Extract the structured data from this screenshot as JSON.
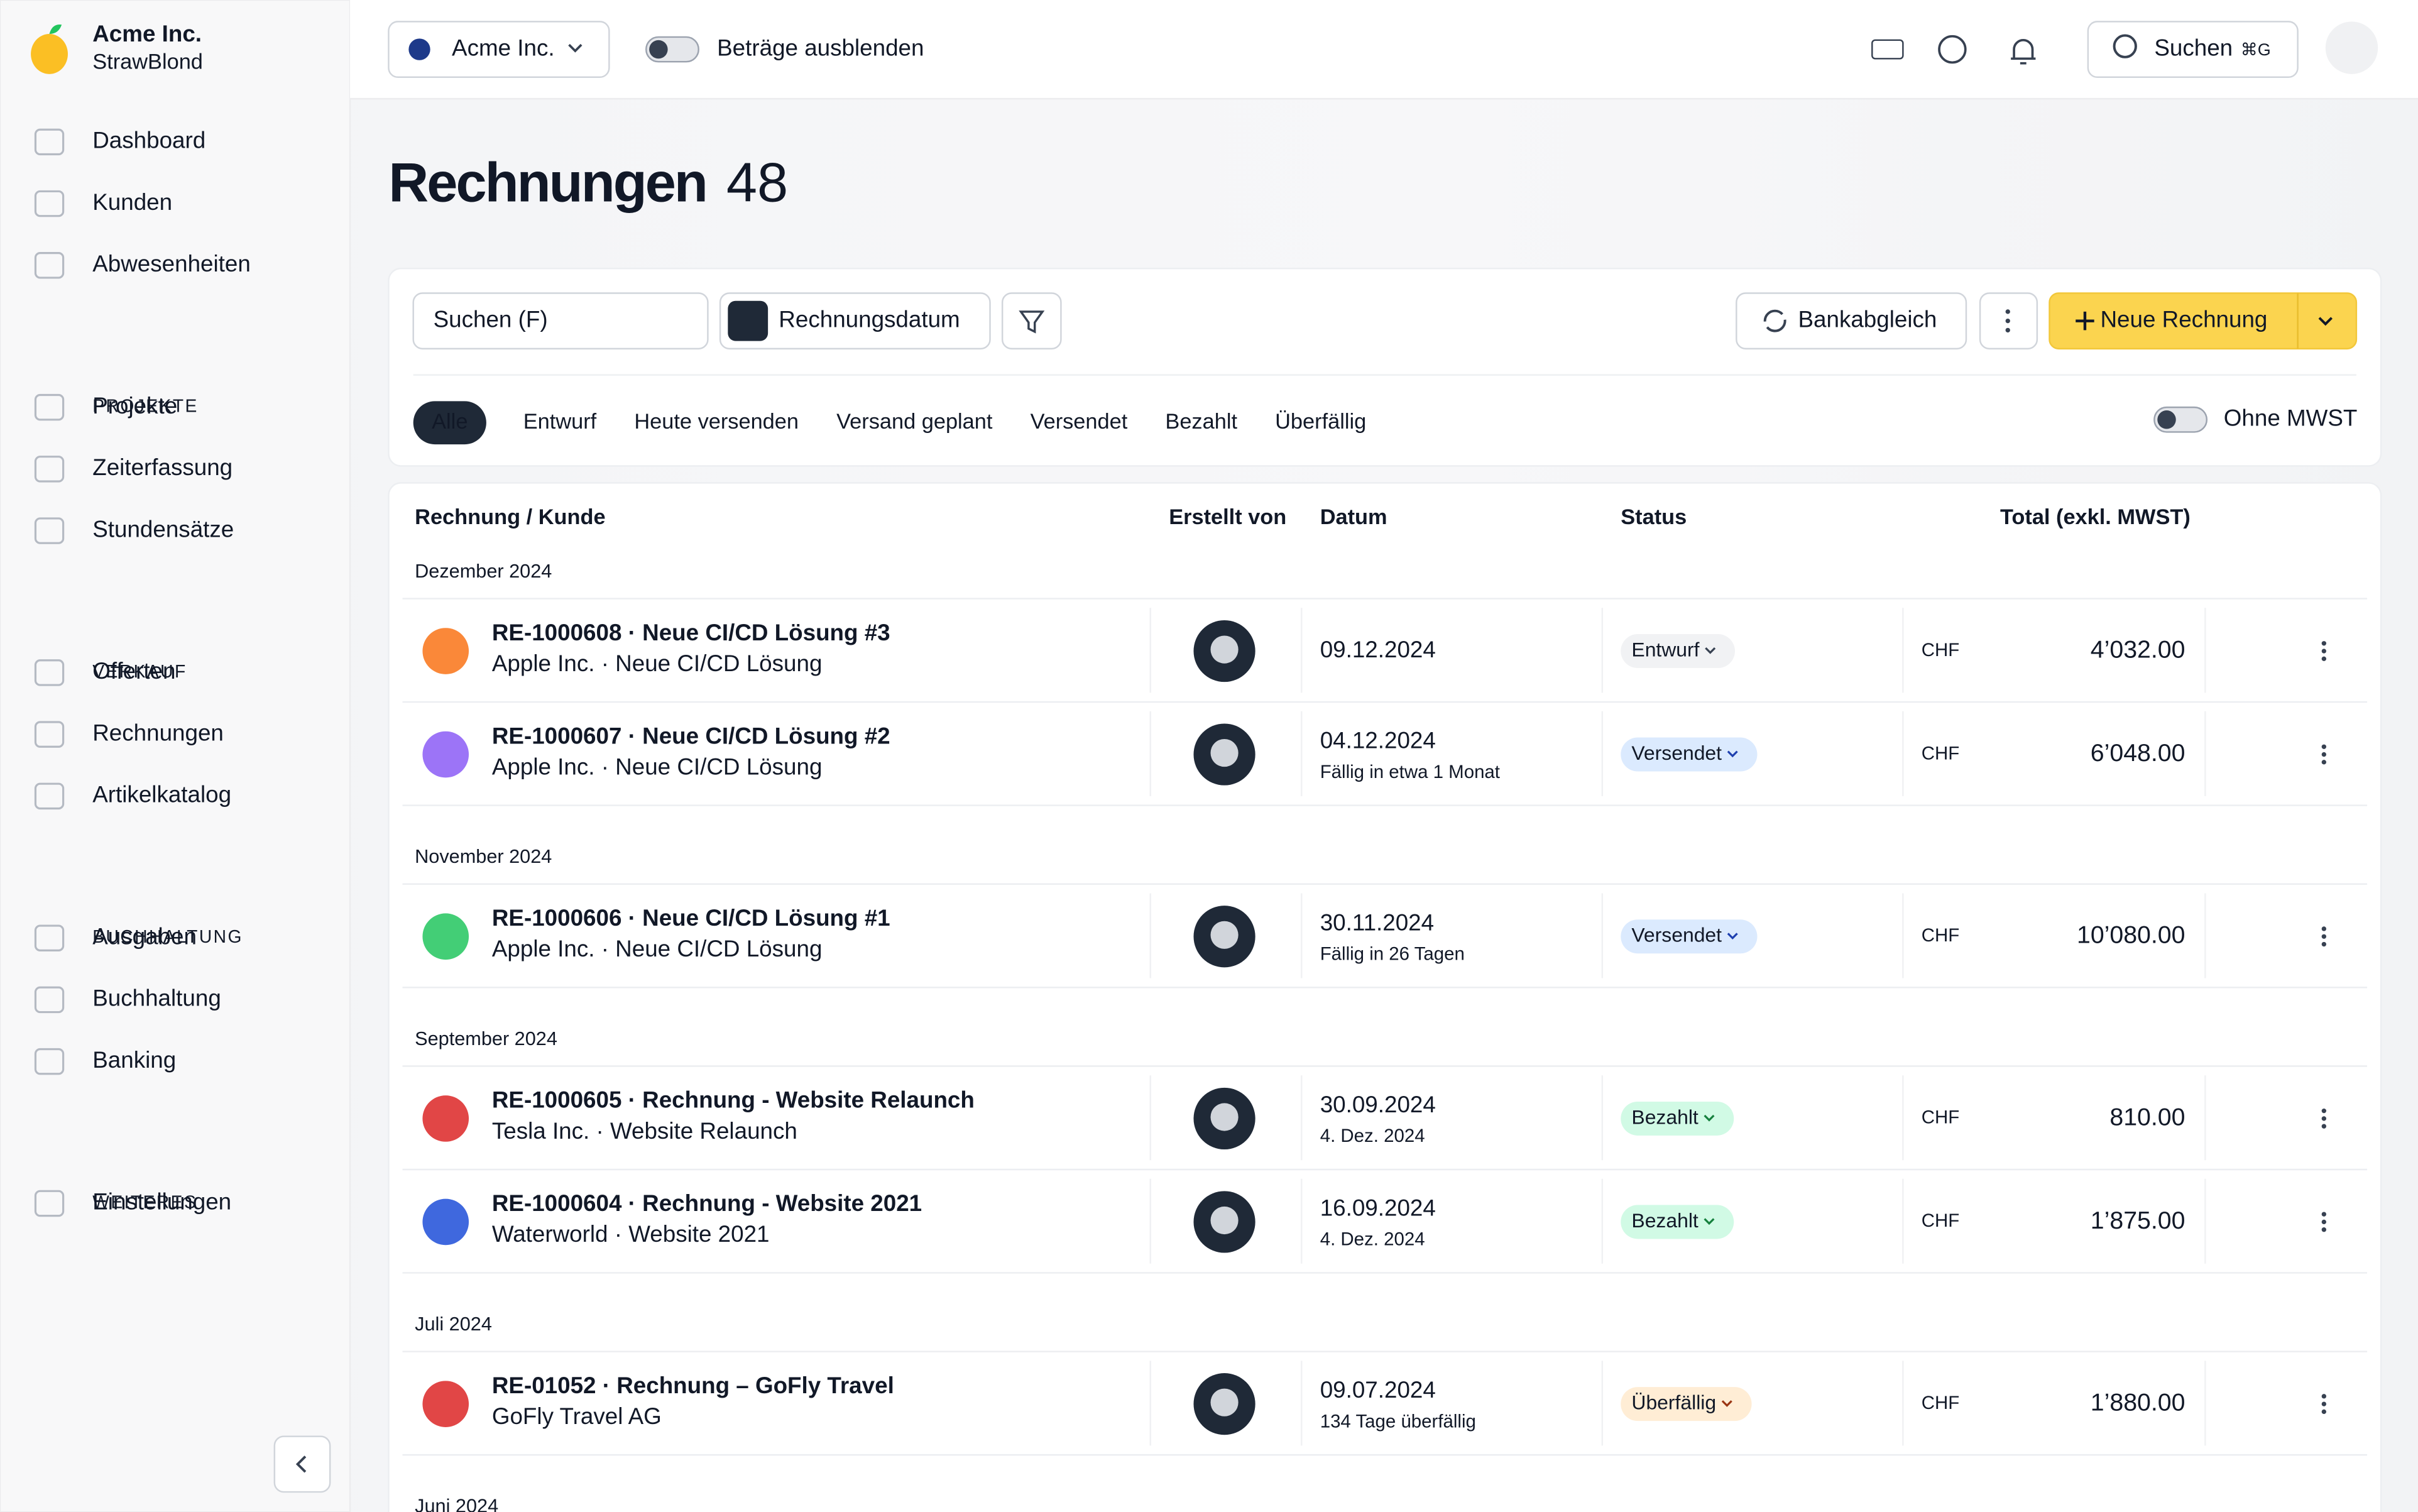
{
  "sidebar": {
    "company": "Acme Inc.",
    "subtitle": "StrawBlond",
    "nav": [
      {
        "items": [
          "Dashboard",
          "Kunden",
          "Abwesenheiten"
        ]
      },
      {
        "heading": "PROJEKTE",
        "items": [
          "Projekte",
          "Zeiterfassung",
          "Stundensätze"
        ]
      },
      {
        "heading": "VERKAUF",
        "items": [
          "Offerten",
          "Rechnungen",
          "Artikelkatalog"
        ]
      },
      {
        "heading": "BUCHHALTUNG",
        "items": [
          "Ausgaben",
          "Buchhaltung",
          "Banking"
        ]
      },
      {
        "heading": "WEITERES",
        "items": [
          "Einstellungen"
        ]
      }
    ]
  },
  "topbar": {
    "organization": "Acme Inc.",
    "hide_amounts": "Beträge ausblenden",
    "search": "Suchen",
    "search_shortcut": "⌘G"
  },
  "page": {
    "title": "Rechnungen",
    "count": 48
  },
  "toolbar": {
    "search_placeholder": "Suchen (F)",
    "sort": "Rechnungsdatum",
    "bank_reconciliation": "Bankabgleich",
    "new_invoice": "Neue Rechnung",
    "tabs": [
      "Alle",
      "Entwurf",
      "Heute versenden",
      "Versand geplant",
      "Versendet",
      "Bezahlt",
      "Überfällig"
    ],
    "active_tab": 0,
    "vat_toggle": "Ohne MWST"
  },
  "table": {
    "columns": [
      "Rechnung / Kunde",
      "Erstellt von",
      "Datum",
      "Status",
      "Total (exkl. MWST)"
    ],
    "groups": [
      {
        "label": "Dezember 2024",
        "rows": [
          {
            "title": "RE-1000608 · Neue CI/CD Lösung #3",
            "customer": "Apple Inc. · Neue CI/CD Lösung",
            "date": "09.12.2024",
            "status": "Entwurf",
            "status_color": "#374151",
            "status_bg": "#f1f2f4",
            "currency": "CHF",
            "total": "4’032.00"
          },
          {
            "title": "RE-1000607 · Neue CI/CD Lösung #2",
            "customer": "Apple Inc. · Neue CI/CD Lösung",
            "date": "04.12.2024",
            "note": "Fällig in etwa 1 Monat",
            "note_color": "#6b7280",
            "status": "Versendet",
            "status_color": "#1e40af",
            "status_bg": "#dbeafe",
            "currency": "CHF",
            "total": "6’048.00"
          }
        ]
      },
      {
        "label": "November 2024",
        "rows": [
          {
            "title": "RE-1000606 · Neue CI/CD Lösung #1",
            "customer": "Apple Inc. · Neue CI/CD Lösung",
            "date": "30.11.2024",
            "note": "Fällig in 26 Tagen",
            "note_color": "#6b7280",
            "status": "Versendet",
            "status_color": "#1e40af",
            "status_bg": "#dbeafe",
            "currency": "CHF",
            "total": "10’080.00"
          }
        ]
      },
      {
        "label": "September 2024",
        "rows": [
          {
            "title": "RE-1000605 · Rechnung - Website Relaunch",
            "customer": "Tesla Inc. · Website Relaunch",
            "date": "30.09.2024",
            "note": "4. Dez. 2024",
            "note_color": "#16a34a",
            "status": "Bezahlt",
            "status_color": "#15803d",
            "status_bg": "#d1fae5",
            "currency": "CHF",
            "total": "810.00"
          },
          {
            "title": "RE-1000604 · Rechnung - Website 2021",
            "customer": "Waterworld · Website 2021",
            "date": "16.09.2024",
            "note": "4. Dez. 2024",
            "note_color": "#16a34a",
            "status": "Bezahlt",
            "status_color": "#15803d",
            "status_bg": "#d1fae5",
            "currency": "CHF",
            "total": "1’875.00"
          }
        ]
      },
      {
        "label": "Juli 2024",
        "rows": [
          {
            "title": "RE-01052 · Rechnung – GoFly Travel",
            "customer": "GoFly Travel AG",
            "date": "09.07.2024",
            "note": "134 Tage überfällig",
            "note_color": "#e11d48",
            "status": "Überfällig",
            "status_color": "#9a3412",
            "status_bg": "#ffedd5",
            "currency": "CHF",
            "total": "1’880.00"
          }
        ]
      },
      {
        "label": "Juni 2024",
        "rows": []
      }
    ]
  }
}
